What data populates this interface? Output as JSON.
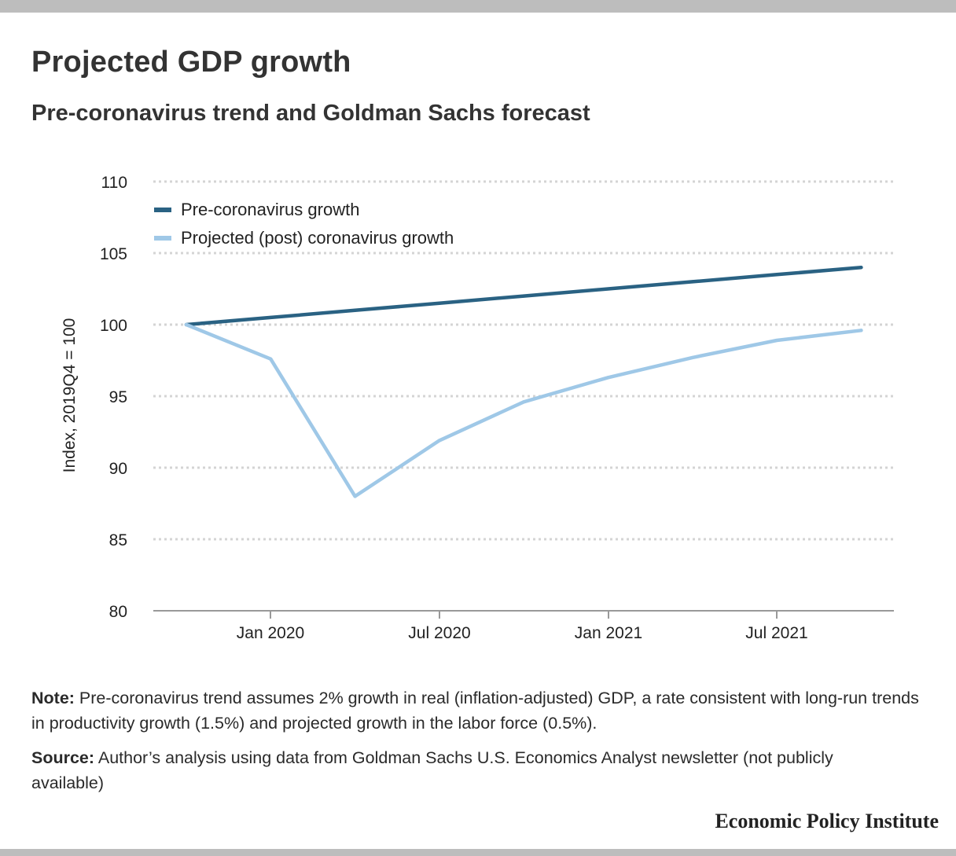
{
  "header": {
    "title": "Projected GDP growth",
    "subtitle": "Pre-coronavirus trend and Goldman Sachs forecast"
  },
  "footer": {
    "note_label": "Note:",
    "note_text": "Pre-coronavirus trend assumes 2% growth in real (inflation-adjusted) GDP, a rate consistent with long-run trends in productivity growth (1.5%) and projected growth in the labor force (0.5%).",
    "source_label": "Source:",
    "source_text": "Author’s analysis using data from Goldman Sachs U.S. Economics Analyst newsletter (not publicly available)",
    "brand": "Economic Policy Institute"
  },
  "chart_data": {
    "type": "line",
    "ylabel": "Index, 2019Q4 = 100",
    "ylim": [
      80,
      110
    ],
    "yticks": [
      80,
      85,
      90,
      95,
      100,
      105,
      110
    ],
    "xticks": [
      "Jan 2020",
      "Jul 2020",
      "Jan 2021",
      "Jul 2021"
    ],
    "x": [
      "2019Q4",
      "2020Q1",
      "2020Q2",
      "2020Q3",
      "2020Q4",
      "2021Q1",
      "2021Q2",
      "2021Q3",
      "2021Q4"
    ],
    "grid": true,
    "legend_position": "top-left",
    "series": [
      {
        "name": "Pre-coronavirus growth",
        "color": "#2a6283",
        "values": [
          100,
          100.5,
          101.0,
          101.5,
          102.0,
          102.5,
          103.0,
          103.5,
          104.0
        ]
      },
      {
        "name": "Projected (post) coronavirus growth",
        "color": "#9fc8e7",
        "values": [
          100,
          97.6,
          88.0,
          91.9,
          94.6,
          96.3,
          97.7,
          98.9,
          99.6
        ]
      }
    ]
  }
}
